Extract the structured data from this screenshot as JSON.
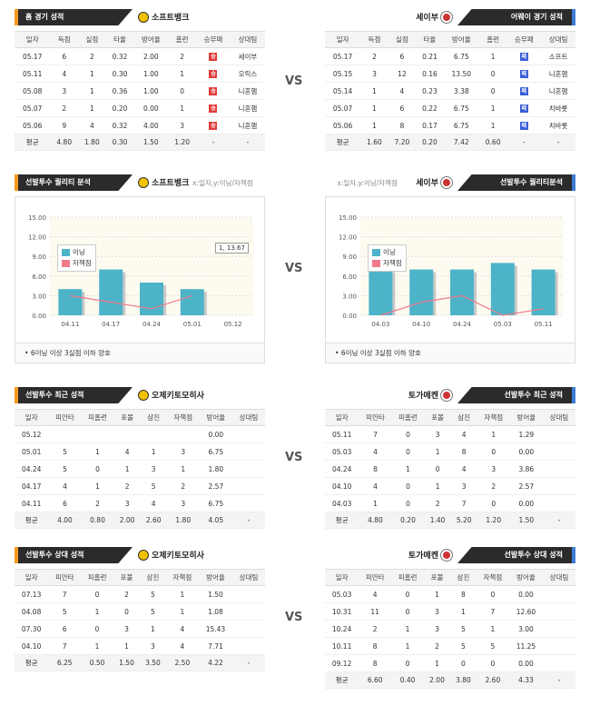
{
  "vs": "VS",
  "home_record": {
    "header": "홈 경기 성적",
    "team": "소프트뱅크",
    "columns": [
      "일자",
      "득점",
      "실점",
      "타율",
      "방어율",
      "홈런",
      "승무패",
      "상대팀"
    ],
    "rows": [
      [
        "05.17",
        "6",
        "2",
        "0.32",
        "2.00",
        "2",
        "승",
        "세이부"
      ],
      [
        "05.11",
        "4",
        "1",
        "0.30",
        "1.00",
        "1",
        "승",
        "오릭스"
      ],
      [
        "05.08",
        "3",
        "1",
        "0.36",
        "1.00",
        "0",
        "승",
        "니혼햄"
      ],
      [
        "05.07",
        "2",
        "1",
        "0.20",
        "0.00",
        "1",
        "승",
        "니혼햄"
      ],
      [
        "05.06",
        "9",
        "4",
        "0.32",
        "4.00",
        "3",
        "승",
        "니혼햄"
      ]
    ],
    "avg": [
      "평균",
      "4.80",
      "1.80",
      "0.30",
      "1.50",
      "1.20",
      "-",
      "-"
    ]
  },
  "away_record": {
    "header": "어웨이 경기 성적",
    "team": "세이부",
    "columns": [
      "일자",
      "득점",
      "실점",
      "타율",
      "방어율",
      "홈런",
      "승무패",
      "상대팀"
    ],
    "rows": [
      [
        "05.17",
        "2",
        "6",
        "0.21",
        "6.75",
        "1",
        "패",
        "소프트"
      ],
      [
        "05.15",
        "3",
        "12",
        "0.16",
        "13.50",
        "0",
        "패",
        "니혼햄"
      ],
      [
        "05.14",
        "1",
        "4",
        "0.23",
        "3.38",
        "0",
        "패",
        "니혼햄"
      ],
      [
        "05.07",
        "1",
        "6",
        "0.22",
        "6.75",
        "1",
        "패",
        "치바롯"
      ],
      [
        "05.06",
        "1",
        "8",
        "0.17",
        "6.75",
        "1",
        "패",
        "치바롯"
      ]
    ],
    "avg": [
      "평균",
      "1.60",
      "7.20",
      "0.20",
      "7.42",
      "0.60",
      "-",
      "-"
    ]
  },
  "quality_left": {
    "header": "선발투수 퀄리티 분석",
    "team": "소프트뱅크",
    "hint": "x:일자,y:이닝/자책점",
    "tooltip": "1, 13.67",
    "legend_inning": "이닝",
    "legend_er": "자책점",
    "note": "6이닝 이상 3실점 이하 양호"
  },
  "quality_right": {
    "header": "선발투수 퀄리티분석",
    "team": "세이부",
    "hint": "x:일자,y:이닝/자책점",
    "legend_inning": "이닝",
    "legend_er": "자책점",
    "note": "6이닝 이상 3실점 이하 양호"
  },
  "chart_data": [
    {
      "type": "bar",
      "categories": [
        "04.11",
        "04.17",
        "04.24",
        "05.01",
        "05.12"
      ],
      "series": [
        {
          "name": "이닝",
          "values": [
            4,
            7,
            5,
            4,
            0
          ]
        },
        {
          "name": "자책점",
          "values": [
            3,
            2,
            1,
            3,
            null
          ]
        }
      ],
      "ylim": [
        0,
        15
      ],
      "yticks": [
        "0.00",
        "3.00",
        "6.00",
        "9.00",
        "12.00",
        "15.00"
      ]
    },
    {
      "type": "bar",
      "categories": [
        "04.03",
        "04.10",
        "04.24",
        "05.03",
        "05.11"
      ],
      "series": [
        {
          "name": "이닝",
          "values": [
            7,
            7,
            7,
            8,
            7
          ]
        },
        {
          "name": "자책점",
          "values": [
            0,
            2,
            3,
            0,
            1
          ]
        }
      ],
      "ylim": [
        0,
        15
      ],
      "yticks": [
        "0.00",
        "3.00",
        "6.00",
        "9.00",
        "12.00",
        "15.00"
      ]
    }
  ],
  "recent_left": {
    "header": "선발투수 최근 성적",
    "team": "오제키토모히사",
    "columns": [
      "일자",
      "피안타",
      "피홈런",
      "포볼",
      "삼진",
      "자책점",
      "방어율",
      "상대팀"
    ],
    "rows": [
      [
        "05.12",
        "",
        "",
        "",
        "",
        "",
        "0.00",
        ""
      ],
      [
        "05.01",
        "5",
        "1",
        "4",
        "1",
        "3",
        "6.75",
        ""
      ],
      [
        "04.24",
        "5",
        "0",
        "1",
        "3",
        "1",
        "1.80",
        ""
      ],
      [
        "04.17",
        "4",
        "1",
        "2",
        "5",
        "2",
        "2.57",
        ""
      ],
      [
        "04.11",
        "6",
        "2",
        "3",
        "4",
        "3",
        "6.75",
        ""
      ]
    ],
    "avg": [
      "평균",
      "4.00",
      "0.80",
      "2.00",
      "2.60",
      "1.80",
      "4.05",
      "-"
    ]
  },
  "recent_right": {
    "header": "선발투수 최근 성적",
    "team": "토가메켄",
    "columns": [
      "일자",
      "피안타",
      "피홈런",
      "포볼",
      "삼진",
      "자책점",
      "방어율",
      "상대팀"
    ],
    "rows": [
      [
        "05.11",
        "7",
        "0",
        "3",
        "4",
        "1",
        "1.29",
        ""
      ],
      [
        "05.03",
        "4",
        "0",
        "1",
        "8",
        "0",
        "0.00",
        ""
      ],
      [
        "04.24",
        "8",
        "1",
        "0",
        "4",
        "3",
        "3.86",
        ""
      ],
      [
        "04.10",
        "4",
        "0",
        "1",
        "3",
        "2",
        "2.57",
        ""
      ],
      [
        "04.03",
        "1",
        "0",
        "2",
        "7",
        "0",
        "0.00",
        ""
      ]
    ],
    "avg": [
      "평균",
      "4.80",
      "0.20",
      "1.40",
      "5.20",
      "1.20",
      "1.50",
      "-"
    ]
  },
  "vs_left": {
    "header": "선발투수 상대 성적",
    "team": "오제키토모히사",
    "columns": [
      "일자",
      "피안타",
      "피홈런",
      "포볼",
      "삼진",
      "자책점",
      "방어율",
      "상대팀"
    ],
    "rows": [
      [
        "07.13",
        "7",
        "0",
        "2",
        "5",
        "1",
        "1.50",
        ""
      ],
      [
        "04.08",
        "5",
        "1",
        "0",
        "5",
        "1",
        "1.08",
        ""
      ],
      [
        "07.30",
        "6",
        "0",
        "3",
        "1",
        "4",
        "15.43",
        ""
      ],
      [
        "04.10",
        "7",
        "1",
        "1",
        "3",
        "4",
        "7.71",
        ""
      ]
    ],
    "avg": [
      "평균",
      "6.25",
      "0.50",
      "1.50",
      "3.50",
      "2.50",
      "4.22",
      "-"
    ]
  },
  "vs_right": {
    "header": "선발투수 상대 성적",
    "team": "토가메켄",
    "columns": [
      "일자",
      "피안타",
      "피홈런",
      "포볼",
      "삼진",
      "자책점",
      "방어율",
      "상대팀"
    ],
    "rows": [
      [
        "05.03",
        "4",
        "0",
        "1",
        "8",
        "0",
        "0.00",
        ""
      ],
      [
        "10.31",
        "11",
        "0",
        "3",
        "1",
        "7",
        "12.60",
        ""
      ],
      [
        "10.24",
        "2",
        "1",
        "3",
        "5",
        "1",
        "3.00",
        ""
      ],
      [
        "10.11",
        "8",
        "1",
        "2",
        "5",
        "5",
        "11.25",
        ""
      ],
      [
        "09.12",
        "8",
        "0",
        "1",
        "0",
        "0",
        "0.00",
        ""
      ]
    ],
    "avg": [
      "평균",
      "6.60",
      "0.40",
      "2.00",
      "3.80",
      "2.60",
      "4.33",
      "-"
    ]
  }
}
